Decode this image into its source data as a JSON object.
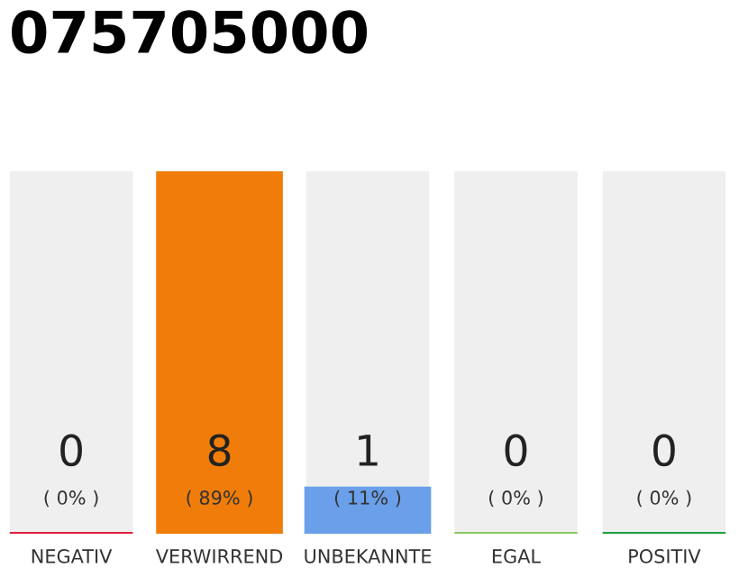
{
  "chart_data": {
    "type": "bar",
    "title": "075705000",
    "categories": [
      "NEGATIV",
      "VERWIRREND",
      "UNBEKANNTE",
      "EGAL",
      "POSITIV"
    ],
    "values": [
      0,
      8,
      1,
      0,
      0
    ],
    "colors": [
      "#e0203a",
      "#f07d0a",
      "#6aa0ea",
      "#8cc860",
      "#20a040"
    ],
    "value_labels": [
      "0",
      "8",
      "1",
      "0",
      "0"
    ],
    "annotations": [
      "( 0% )",
      "( 89% )",
      "( 11% )",
      "( 0% )",
      "( 0% )"
    ],
    "grid": false,
    "legend": false
  }
}
